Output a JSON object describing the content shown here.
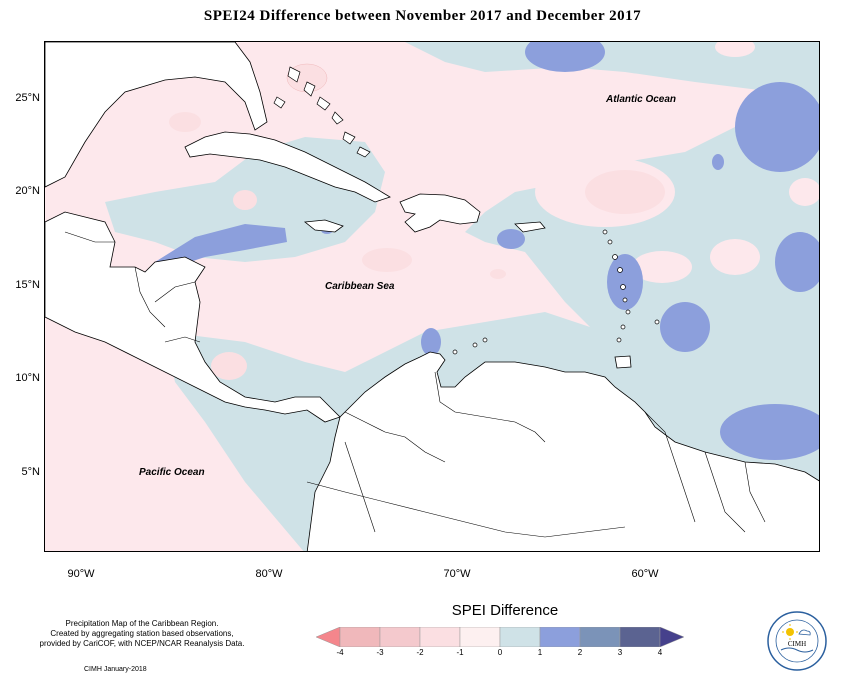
{
  "title": "SPEI24 Difference between November 2017 and December 2017",
  "map": {
    "latitude_labels": [
      "25°N",
      "20°N",
      "15°N",
      "10°N",
      "5°N"
    ],
    "longitude_labels": [
      "90°W",
      "80°W",
      "70°W",
      "60°W"
    ],
    "ocean_labels": {
      "atlantic": "Atlantic Ocean",
      "caribbean": "Caribbean Sea",
      "pacific": "Pacific Ocean"
    },
    "extent": {
      "west": "-92°",
      "east": "-51.5°",
      "south": "1.5°N",
      "north": "28.5°N"
    }
  },
  "legend": {
    "title": "SPEI Difference",
    "ticks": [
      "-4",
      "-3",
      "-2",
      "-1",
      "0",
      "1",
      "2",
      "3",
      "4"
    ],
    "colors": [
      "#f4868c",
      "#f0b8bb",
      "#fbdfe2",
      "#fdf0f0",
      "#cfe2e7",
      "#8c9fdc",
      "#7b93b8",
      "#5b6391",
      "#46418c"
    ]
  },
  "credits": {
    "line1": "Precipitation Map of the Caribbean Region.",
    "line2": "Created by aggregating station based observations,",
    "line3": "provided by CariCOF, with NCEP/NCAR Reanalysis Data.",
    "date": "CIMH January-2018"
  },
  "logo": {
    "text": "CIMH",
    "icon": "cimh-logo-icon"
  },
  "colors": {
    "land": "#ffffff",
    "neutral_negative": "#fde8ec",
    "neutral_positive": "#cfe2e7",
    "mild_positive": "#8c9fdc",
    "mild_negative": "#fbdfe2"
  }
}
